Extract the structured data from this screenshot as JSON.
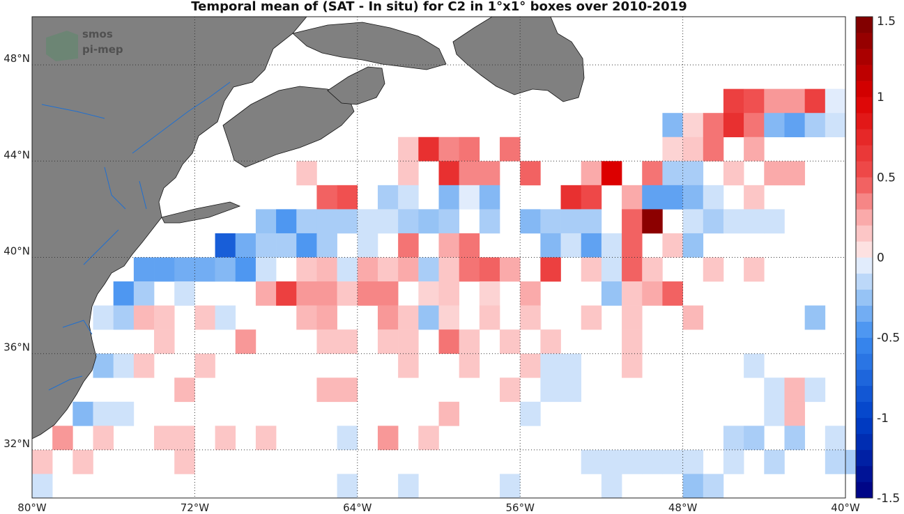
{
  "chart_data": {
    "type": "heatmap",
    "title": "Temporal mean of (SAT - In situ) for C2 in 1°x1° boxes over 2010-2019",
    "xlim": [
      -80,
      -40
    ],
    "ylim": [
      30,
      50
    ],
    "x_ticks": [
      {
        "value": -80,
        "label": "80°W"
      },
      {
        "value": -72,
        "label": "72°W"
      },
      {
        "value": -64,
        "label": "64°W"
      },
      {
        "value": -56,
        "label": "56°W"
      },
      {
        "value": -48,
        "label": "48°W"
      },
      {
        "value": -40,
        "label": "40°W"
      }
    ],
    "y_ticks": [
      {
        "value": 32,
        "label": "32°N"
      },
      {
        "value": 36,
        "label": "36°N"
      },
      {
        "value": 40,
        "label": "40°N"
      },
      {
        "value": 44,
        "label": "44°N"
      },
      {
        "value": 48,
        "label": "48°N"
      }
    ],
    "grid": "dotted",
    "colorbar": {
      "range": [
        -1.5,
        1.5
      ],
      "ticks": [
        {
          "value": 1.5,
          "label": "1.5"
        },
        {
          "value": 1,
          "label": "1"
        },
        {
          "value": 0.5,
          "label": "0.5"
        },
        {
          "value": 0,
          "label": "0"
        },
        {
          "value": -0.5,
          "label": "-0.5"
        },
        {
          "value": -1,
          "label": "-1"
        },
        {
          "value": -1.5,
          "label": "-1.5"
        }
      ]
    },
    "cell_size_deg": 1,
    "cells": [
      [
        -46,
        46,
        0.6
      ],
      [
        -45,
        46,
        0.5
      ],
      [
        -44,
        46,
        0.3
      ],
      [
        -43,
        46,
        0.3
      ],
      [
        -42,
        46,
        0.6
      ],
      [
        -41,
        46,
        -0.05
      ],
      [
        -49,
        45,
        -0.3
      ],
      [
        -48,
        45,
        0.1
      ],
      [
        -47,
        45,
        0.4
      ],
      [
        -46,
        45,
        0.7
      ],
      [
        -45,
        45,
        0.4
      ],
      [
        -44,
        45,
        -0.3
      ],
      [
        -43,
        45,
        -0.4
      ],
      [
        -42,
        45,
        -0.2
      ],
      [
        -41,
        45,
        -0.1
      ],
      [
        -62,
        44,
        0.15
      ],
      [
        -61,
        44,
        0.7
      ],
      [
        -60,
        44,
        0.35
      ],
      [
        -59,
        44,
        0.4
      ],
      [
        -57,
        44,
        0.4
      ],
      [
        -49,
        44,
        0.1
      ],
      [
        -48,
        44,
        0.15
      ],
      [
        -47,
        44,
        0.4
      ],
      [
        -45,
        44,
        0.25
      ],
      [
        -67,
        43,
        0.15
      ],
      [
        -62,
        43,
        0.15
      ],
      [
        -60,
        43,
        0.7
      ],
      [
        -59,
        43,
        0.35
      ],
      [
        -58,
        43,
        0.35
      ],
      [
        -56,
        43,
        0.45
      ],
      [
        -53,
        43,
        0.25
      ],
      [
        -52,
        43,
        1.0
      ],
      [
        -50,
        43,
        0.4
      ],
      [
        -49,
        43,
        -0.2
      ],
      [
        -48,
        43,
        -0.2
      ],
      [
        -46,
        43,
        0.15
      ],
      [
        -44,
        43,
        0.25
      ],
      [
        -43,
        43,
        0.25
      ],
      [
        -66,
        42,
        0.45
      ],
      [
        -65,
        42,
        0.5
      ],
      [
        -63,
        42,
        -0.2
      ],
      [
        -62,
        42,
        -0.1
      ],
      [
        -60,
        42,
        -0.3
      ],
      [
        -59,
        42,
        -0.05
      ],
      [
        -58,
        42,
        -0.3
      ],
      [
        -54,
        42,
        0.7
      ],
      [
        -53,
        42,
        0.55
      ],
      [
        -51,
        42,
        0.25
      ],
      [
        -50,
        42,
        -0.4
      ],
      [
        -49,
        42,
        -0.4
      ],
      [
        -48,
        42,
        -0.3
      ],
      [
        -47,
        42,
        -0.1
      ],
      [
        -45,
        42,
        0.15
      ],
      [
        -69,
        41,
        -0.25
      ],
      [
        -68,
        41,
        -0.45
      ],
      [
        -67,
        41,
        -0.2
      ],
      [
        -66,
        41,
        -0.2
      ],
      [
        -65,
        41,
        -0.2
      ],
      [
        -64,
        41,
        -0.1
      ],
      [
        -63,
        41,
        -0.1
      ],
      [
        -62,
        41,
        -0.2
      ],
      [
        -61,
        41,
        -0.25
      ],
      [
        -60,
        41,
        -0.2
      ],
      [
        -58,
        41,
        -0.2
      ],
      [
        -56,
        41,
        -0.3
      ],
      [
        -55,
        41,
        -0.2
      ],
      [
        -54,
        41,
        -0.2
      ],
      [
        -53,
        41,
        -0.2
      ],
      [
        -51,
        41,
        0.45
      ],
      [
        -50,
        41,
        1.4
      ],
      [
        -48,
        41,
        -0.1
      ],
      [
        -47,
        41,
        -0.2
      ],
      [
        -46,
        41,
        -0.1
      ],
      [
        -45,
        41,
        -0.1
      ],
      [
        -44,
        41,
        -0.1
      ],
      [
        -71,
        40,
        -0.8
      ],
      [
        -70,
        40,
        -0.35
      ],
      [
        -69,
        40,
        -0.2
      ],
      [
        -68,
        40,
        -0.2
      ],
      [
        -67,
        40,
        -0.45
      ],
      [
        -66,
        40,
        -0.2
      ],
      [
        -64,
        40,
        -0.1
      ],
      [
        -62,
        40,
        0.4
      ],
      [
        -60,
        40,
        0.25
      ],
      [
        -59,
        40,
        0.4
      ],
      [
        -55,
        40,
        -0.3
      ],
      [
        -54,
        40,
        -0.1
      ],
      [
        -53,
        40,
        -0.4
      ],
      [
        -52,
        40,
        -0.1
      ],
      [
        -51,
        40,
        0.45
      ],
      [
        -49,
        40,
        0.15
      ],
      [
        -48,
        40,
        -0.25
      ],
      [
        -75,
        39,
        -0.4
      ],
      [
        -74,
        39,
        -0.4
      ],
      [
        -73,
        39,
        -0.35
      ],
      [
        -72,
        39,
        -0.35
      ],
      [
        -71,
        39,
        -0.3
      ],
      [
        -70,
        39,
        -0.45
      ],
      [
        -69,
        39,
        -0.1
      ],
      [
        -67,
        39,
        0.15
      ],
      [
        -66,
        39,
        0.2
      ],
      [
        -65,
        39,
        -0.1
      ],
      [
        -64,
        39,
        0.25
      ],
      [
        -63,
        39,
        0.15
      ],
      [
        -62,
        39,
        0.25
      ],
      [
        -61,
        39,
        -0.2
      ],
      [
        -60,
        39,
        0.15
      ],
      [
        -59,
        39,
        0.4
      ],
      [
        -58,
        39,
        0.45
      ],
      [
        -57,
        39,
        0.25
      ],
      [
        -55,
        39,
        0.6
      ],
      [
        -53,
        39,
        0.15
      ],
      [
        -52,
        39,
        -0.1
      ],
      [
        -51,
        39,
        0.45
      ],
      [
        -50,
        39,
        0.15
      ],
      [
        -47,
        39,
        0.15
      ],
      [
        -45,
        39,
        0.15
      ],
      [
        -76,
        38,
        -0.45
      ],
      [
        -75,
        38,
        -0.2
      ],
      [
        -73,
        38,
        -0.1
      ],
      [
        -69,
        38,
        0.25
      ],
      [
        -68,
        38,
        0.6
      ],
      [
        -67,
        38,
        0.3
      ],
      [
        -66,
        38,
        0.3
      ],
      [
        -65,
        38,
        0.15
      ],
      [
        -64,
        38,
        0.35
      ],
      [
        -63,
        38,
        0.35
      ],
      [
        -61,
        38,
        0.1
      ],
      [
        -60,
        38,
        0.15
      ],
      [
        -58,
        38,
        0.1
      ],
      [
        -56,
        38,
        0.25
      ],
      [
        -52,
        38,
        -0.25
      ],
      [
        -51,
        38,
        0.15
      ],
      [
        -50,
        38,
        0.25
      ],
      [
        -49,
        38,
        0.45
      ],
      [
        -77,
        37,
        -0.1
      ],
      [
        -76,
        37,
        -0.2
      ],
      [
        -75,
        37,
        0.2
      ],
      [
        -74,
        37,
        0.15
      ],
      [
        -72,
        37,
        0.15
      ],
      [
        -71,
        37,
        -0.1
      ],
      [
        -67,
        37,
        0.2
      ],
      [
        -66,
        37,
        0.25
      ],
      [
        -63,
        37,
        0.3
      ],
      [
        -62,
        37,
        0.15
      ],
      [
        -61,
        37,
        -0.25
      ],
      [
        -60,
        37,
        0.1
      ],
      [
        -58,
        37,
        0.15
      ],
      [
        -56,
        37,
        0.15
      ],
      [
        -53,
        37,
        0.15
      ],
      [
        -51,
        37,
        0.15
      ],
      [
        -48,
        37,
        0.2
      ],
      [
        -42,
        37,
        -0.25
      ],
      [
        -74,
        36,
        0.15
      ],
      [
        -70,
        36,
        0.3
      ],
      [
        -66,
        36,
        0.15
      ],
      [
        -65,
        36,
        0.15
      ],
      [
        -63,
        36,
        0.15
      ],
      [
        -62,
        36,
        0.15
      ],
      [
        -60,
        36,
        0.4
      ],
      [
        -59,
        36,
        0.15
      ],
      [
        -57,
        36,
        0.15
      ],
      [
        -55,
        36,
        0.15
      ],
      [
        -51,
        36,
        0.15
      ],
      [
        -77,
        35,
        -0.25
      ],
      [
        -76,
        35,
        -0.1
      ],
      [
        -75,
        35,
        0.15
      ],
      [
        -72,
        35,
        0.15
      ],
      [
        -62,
        35,
        0.15
      ],
      [
        -59,
        35,
        0.15
      ],
      [
        -56,
        35,
        0.15
      ],
      [
        -55,
        35,
        -0.1
      ],
      [
        -54,
        35,
        -0.1
      ],
      [
        -51,
        35,
        0.15
      ],
      [
        -45,
        35,
        -0.1
      ],
      [
        -73,
        34,
        0.2
      ],
      [
        -66,
        34,
        0.2
      ],
      [
        -65,
        34,
        0.2
      ],
      [
        -57,
        34,
        0.15
      ],
      [
        -55,
        34,
        -0.1
      ],
      [
        -54,
        34,
        -0.1
      ],
      [
        -44,
        34,
        -0.1
      ],
      [
        -43,
        34,
        0.2
      ],
      [
        -42,
        34,
        -0.1
      ],
      [
        -78,
        33,
        -0.3
      ],
      [
        -77,
        33,
        -0.1
      ],
      [
        -76,
        33,
        -0.1
      ],
      [
        -60,
        33,
        0.2
      ],
      [
        -56,
        33,
        -0.1
      ],
      [
        -44,
        33,
        -0.1
      ],
      [
        -43,
        33,
        0.2
      ],
      [
        -79,
        32,
        0.3
      ],
      [
        -77,
        32,
        0.15
      ],
      [
        -74,
        32,
        0.15
      ],
      [
        -73,
        32,
        0.15
      ],
      [
        -71,
        32,
        0.15
      ],
      [
        -69,
        32,
        0.15
      ],
      [
        -65,
        32,
        -0.1
      ],
      [
        -63,
        32,
        0.3
      ],
      [
        -61,
        32,
        0.15
      ],
      [
        -46,
        32,
        -0.15
      ],
      [
        -45,
        32,
        -0.2
      ],
      [
        -43,
        32,
        -0.2
      ],
      [
        -41,
        32,
        -0.1
      ],
      [
        -80,
        31,
        0.15
      ],
      [
        -78,
        31,
        0.15
      ],
      [
        -73,
        31,
        0.15
      ],
      [
        -53,
        31,
        -0.1
      ],
      [
        -52,
        31,
        -0.1
      ],
      [
        -51,
        31,
        -0.1
      ],
      [
        -50,
        31,
        -0.1
      ],
      [
        -49,
        31,
        -0.1
      ],
      [
        -48,
        31,
        -0.1
      ],
      [
        -46,
        31,
        -0.1
      ],
      [
        -44,
        31,
        -0.15
      ],
      [
        -41,
        31,
        -0.15
      ],
      [
        -40,
        31,
        -0.2
      ],
      [
        -80,
        30,
        -0.1
      ],
      [
        -65,
        30,
        -0.1
      ],
      [
        -62,
        30,
        -0.1
      ],
      [
        -57,
        30,
        -0.1
      ],
      [
        -52,
        30,
        -0.1
      ],
      [
        -48,
        30,
        -0.25
      ],
      [
        -47,
        30,
        -0.15
      ]
    ]
  }
}
